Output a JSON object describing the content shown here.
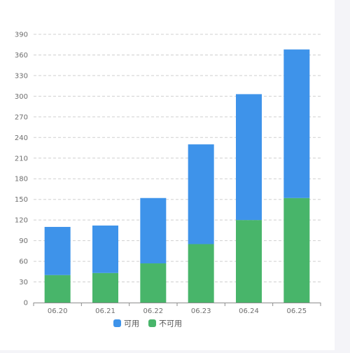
{
  "colors": {
    "available": "#3E93EA",
    "unavailable": "#48B56A",
    "grid": "#CFCFCF",
    "axis": "#8C8C8C",
    "tick_text": "#6E6E6E",
    "legend_text": "#555555"
  },
  "chart_data": {
    "type": "bar",
    "stacked": true,
    "categories": [
      "06.20",
      "06.21",
      "06.22",
      "06.23",
      "06.24",
      "06.25"
    ],
    "series": [
      {
        "name": "不可用",
        "color_key": "unavailable",
        "values": [
          40,
          43,
          57,
          85,
          120,
          152
        ]
      },
      {
        "name": "可用",
        "color_key": "available",
        "values": [
          70,
          69,
          95,
          145,
          183,
          216
        ]
      }
    ],
    "ylim": [
      0,
      390
    ],
    "yticks": [
      0,
      30,
      60,
      90,
      120,
      150,
      180,
      210,
      240,
      270,
      300,
      330,
      360,
      390
    ],
    "grid": "horizontal-dashed",
    "legend": {
      "placement": "bottom-center",
      "items": [
        {
          "label": "可用",
          "color_key": "available",
          "icon": "rounded-square-icon"
        },
        {
          "label": "不可用",
          "color_key": "unavailable",
          "icon": "rounded-square-icon"
        }
      ]
    }
  }
}
